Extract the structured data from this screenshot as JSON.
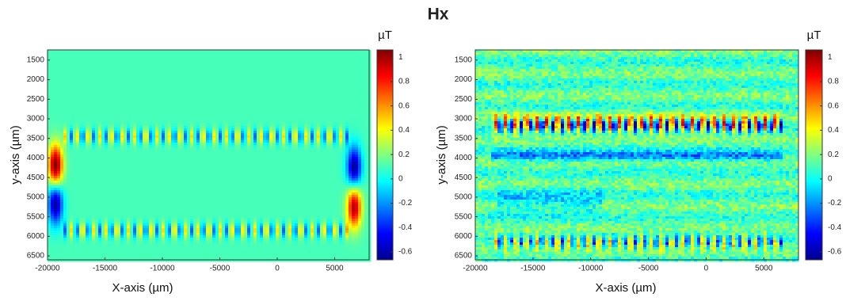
{
  "title": "Hx",
  "chart_data": [
    {
      "type": "heatmap",
      "xlabel": "X-axis (µm)",
      "ylabel": "y-axis (µm)",
      "xlim": [
        -20000,
        8000
      ],
      "xticks": [
        -20000,
        -15000,
        -10000,
        -5000,
        0,
        5000
      ],
      "ylim": [
        1240,
        6600
      ],
      "yticks": [
        1500,
        2000,
        2500,
        3000,
        3500,
        4000,
        4500,
        5000,
        5500,
        6000,
        6500
      ],
      "y_inverted": true,
      "colormap": "jet",
      "colorbar_label": "µT",
      "clim": [
        -0.665,
        1.06
      ],
      "cticks": [
        -0.6,
        -0.4,
        -0.2,
        0,
        0.2,
        0.4,
        0.6,
        0.8,
        1
      ]
    },
    {
      "type": "heatmap",
      "xlabel": "X-axis (µm)",
      "ylabel": "y-axis (µm)",
      "xlim": [
        -20000,
        8000
      ],
      "xticks": [
        -20000,
        -15000,
        -10000,
        -5000,
        0,
        5000
      ],
      "ylim": [
        1240,
        6600
      ],
      "yticks": [
        1500,
        2000,
        2500,
        3000,
        3500,
        4000,
        4500,
        5000,
        5500,
        6000,
        6500
      ],
      "y_inverted": true,
      "colormap": "jet",
      "colorbar_label": "µT",
      "clim": [
        -0.665,
        1.06
      ],
      "cticks": [
        -0.6,
        -0.4,
        -0.2,
        0,
        0.2,
        0.4,
        0.6,
        0.8,
        1
      ]
    }
  ]
}
